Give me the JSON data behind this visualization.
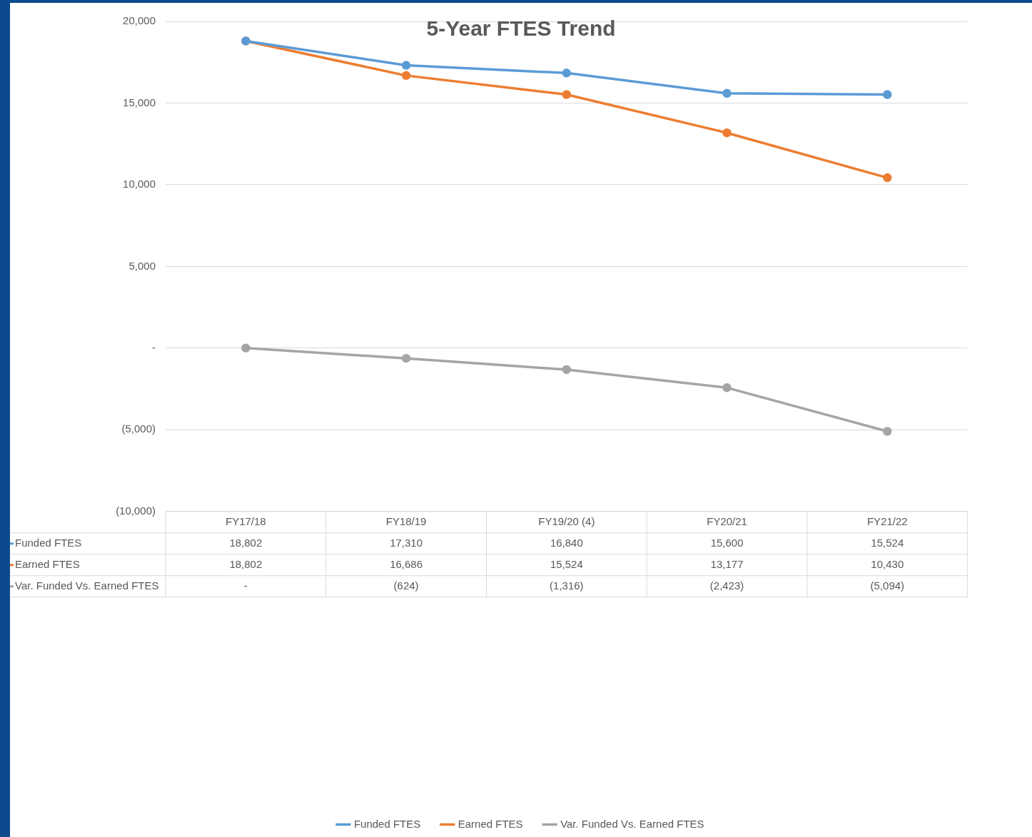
{
  "chart_data": {
    "type": "line",
    "title": "5-Year FTES Trend",
    "categories": [
      "FY17/18",
      "FY18/19",
      "FY19/20 (4)",
      "FY20/21",
      "FY21/22"
    ],
    "series": [
      {
        "name": "Funded FTES",
        "color": "#5b9bd5",
        "values": [
          18802,
          17310,
          16840,
          15600,
          15524
        ],
        "value_labels": [
          "18,802",
          "17,310",
          "16,840",
          "15,600",
          "15,524"
        ]
      },
      {
        "name": "Earned FTES",
        "color": "#ed7d31",
        "values": [
          18802,
          16686,
          15524,
          13177,
          10430
        ],
        "value_labels": [
          "18,802",
          "16,686",
          "15,524",
          "13,177",
          "10,430"
        ]
      },
      {
        "name": "Var. Funded Vs. Earned FTES",
        "color": "#a5a5a5",
        "values": [
          0,
          -624,
          -1316,
          -2423,
          -5094
        ],
        "value_labels": [
          "-",
          "(624)",
          "(1,316)",
          "(2,423)",
          "(5,094)"
        ]
      }
    ],
    "ylim": [
      -10000,
      20000
    ],
    "yticks": [
      {
        "value": -10000,
        "label": "(10,000)"
      },
      {
        "value": -5000,
        "label": "(5,000)"
      },
      {
        "value": 0,
        "label": "-"
      },
      {
        "value": 5000,
        "label": "5,000"
      },
      {
        "value": 10000,
        "label": "10,000"
      },
      {
        "value": 15000,
        "label": "15,000"
      },
      {
        "value": 20000,
        "label": "20,000"
      }
    ],
    "grid": "y",
    "legend": "bottom",
    "marker": "circle",
    "line_style": "solid"
  }
}
